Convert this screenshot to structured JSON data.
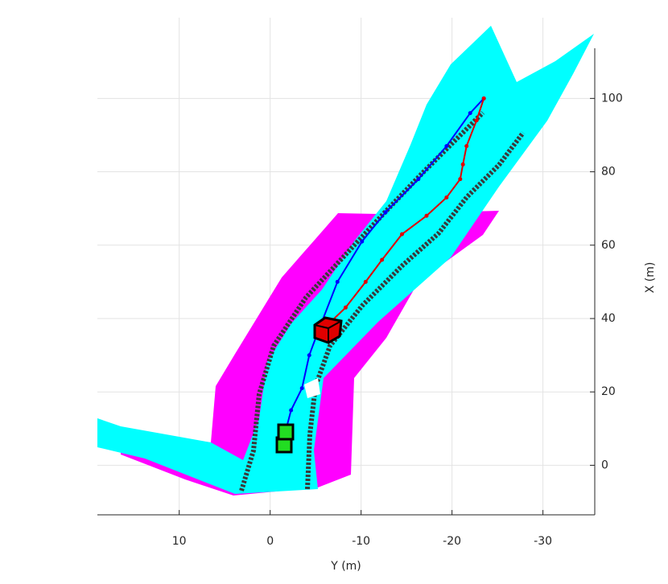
{
  "chart_data": {
    "type": "line",
    "xlabel": "Y (m)",
    "ylabel": "X (m)",
    "xlim": [
      19,
      -35.7
    ],
    "ylim": [
      -13.5,
      122
    ],
    "xticks": [
      10,
      0,
      -10,
      -20,
      -30
    ],
    "yticks": [
      0,
      20,
      40,
      60,
      80,
      100
    ],
    "grid": true,
    "series": [
      {
        "color": "#0000ff",
        "x": [
          -1.4,
          -2.3,
          -3.5,
          -4.3,
          -5.2,
          -7.4,
          -10.1,
          -12.7,
          -16.3,
          -19.4,
          -22,
          -23.5
        ],
        "values": [
          6.5,
          15,
          21,
          30,
          36,
          50,
          61,
          69,
          78,
          87,
          96,
          100
        ]
      },
      {
        "color": "#e00000",
        "x": [
          -6.2,
          -8.3,
          -10.5,
          -12.3,
          -14.5,
          -17.2,
          -19.4,
          -20.9,
          -21.2,
          -21.6,
          -22.7,
          -23.5
        ],
        "values": [
          38,
          43,
          50,
          56,
          63,
          68,
          73,
          78,
          82,
          87,
          94,
          100
        ]
      }
    ]
  }
}
